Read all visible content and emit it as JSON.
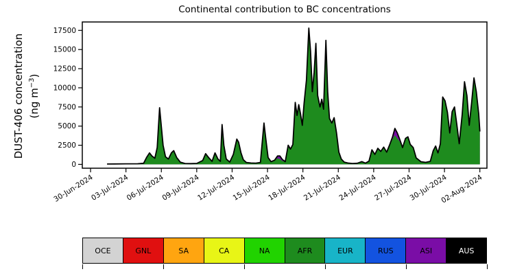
{
  "chart_data": {
    "type": "area",
    "stacked": true,
    "title": "Continental contribution to BC concentrations",
    "ylabel": "DUST-406 concentration (ng m^-3)",
    "ylabel_parts": {
      "line1": "DUST-406 concentration",
      "unit_prefix": "(ng m",
      "unit_exponent": "−3",
      "unit_suffix": ")"
    },
    "xlabel": "",
    "grid": false,
    "legend_position": "bottom",
    "outline_color": "#000000",
    "xlim": [
      -0.7,
      33.6
    ],
    "ylim": [
      -500,
      18600
    ],
    "yticks": [
      0,
      2500,
      5000,
      7500,
      10000,
      12500,
      15000,
      17500
    ],
    "xtick_days": [
      0,
      3,
      6,
      9,
      12,
      15,
      18,
      21,
      24,
      27,
      30,
      33
    ],
    "xtick_labels": [
      "30-Jun-2024",
      "03-Jul-2024",
      "06-Jul-2024",
      "09-Jul-2024",
      "12-Jul-2024",
      "15-Jul-2024",
      "18-Jul-2024",
      "21-Jul-2024",
      "24-Jul-2024",
      "27-Jul-2024",
      "30-Jul-2024",
      "02-Aug-2024"
    ],
    "x_day_zero": "30-Jun-2024",
    "x": [
      1.4,
      2.0,
      3.0,
      4.0,
      4.5,
      4.75,
      5.0,
      5.2,
      5.45,
      5.65,
      5.85,
      6.0,
      6.15,
      6.35,
      6.6,
      6.85,
      7.05,
      7.3,
      7.6,
      8.0,
      8.5,
      9.0,
      9.5,
      9.75,
      10.0,
      10.3,
      10.55,
      10.8,
      11.0,
      11.15,
      11.3,
      11.5,
      11.8,
      12.1,
      12.4,
      12.55,
      12.75,
      12.95,
      13.2,
      13.6,
      14.0,
      14.4,
      14.7,
      14.85,
      15.05,
      15.3,
      15.6,
      15.85,
      16.05,
      16.25,
      16.5,
      16.75,
      16.95,
      17.15,
      17.35,
      17.5,
      17.65,
      17.8,
      17.95,
      18.1,
      18.3,
      18.5,
      18.65,
      18.8,
      18.95,
      19.1,
      19.25,
      19.45,
      19.6,
      19.75,
      19.95,
      20.1,
      20.25,
      20.45,
      20.65,
      20.85,
      21.05,
      21.25,
      21.5,
      21.8,
      22.2,
      22.6,
      23.0,
      23.3,
      23.6,
      23.85,
      24.1,
      24.35,
      24.6,
      24.85,
      25.1,
      25.35,
      25.6,
      25.8,
      26.0,
      26.2,
      26.45,
      26.7,
      26.9,
      27.1,
      27.35,
      27.6,
      28.0,
      28.4,
      28.8,
      29.05,
      29.25,
      29.45,
      29.65,
      29.85,
      30.05,
      30.25,
      30.45,
      30.65,
      30.85,
      31.05,
      31.25,
      31.5,
      31.7,
      31.9,
      32.1,
      32.3,
      32.5,
      32.7,
      32.9,
      33.0
    ],
    "series": [
      {
        "name": "AFR",
        "color": "#1e8b1e",
        "values": [
          50,
          60,
          70,
          80,
          150,
          900,
          1500,
          1100,
          800,
          2200,
          7400,
          5000,
          2500,
          1000,
          700,
          1500,
          1800,
          900,
          300,
          120,
          100,
          130,
          500,
          1400,
          900,
          400,
          1500,
          700,
          400,
          5200,
          2500,
          700,
          300,
          1300,
          3300,
          2900,
          1500,
          600,
          250,
          180,
          160,
          250,
          5400,
          3400,
          900,
          350,
          550,
          800,
          700,
          450,
          350,
          2500,
          2000,
          2600,
          8100,
          6400,
          7800,
          6600,
          5100,
          8000,
          11000,
          17800,
          14800,
          9500,
          12000,
          15800,
          9000,
          7500,
          8500,
          7200,
          16200,
          9500,
          6000,
          5400,
          6100,
          4100,
          1600,
          700,
          300,
          180,
          120,
          150,
          260,
          160,
          420,
          1900,
          1300,
          2100,
          1700,
          2250,
          1600,
          2450,
          3300,
          3800,
          3400,
          3000,
          2200,
          3400,
          3600,
          2600,
          2200,
          850,
          350,
          260,
          400,
          1800,
          2400,
          1500,
          2700,
          8800,
          8300,
          6800,
          4100,
          6900,
          7500,
          5200,
          2700,
          6500,
          10800,
          9000,
          5100,
          8000,
          11300,
          9500,
          6600,
          4300
        ]
      },
      {
        "name": "ASI",
        "color": "#7a0da6",
        "values": [
          0,
          0,
          0,
          0,
          0,
          0,
          0,
          0,
          0,
          0,
          0,
          0,
          0,
          0,
          0,
          0,
          0,
          0,
          0,
          0,
          0,
          0,
          0,
          0,
          0,
          0,
          0,
          0,
          0,
          0,
          0,
          0,
          0,
          0,
          0,
          0,
          0,
          0,
          0,
          0,
          0,
          0,
          0,
          0,
          0,
          0,
          0,
          300,
          400,
          200,
          0,
          0,
          0,
          0,
          0,
          0,
          0,
          0,
          0,
          0,
          0,
          0,
          0,
          0,
          0,
          0,
          0,
          0,
          0,
          0,
          0,
          0,
          0,
          0,
          0,
          0,
          0,
          0,
          0,
          0,
          0,
          0,
          100,
          0,
          0,
          0,
          0,
          0,
          0,
          0,
          0,
          100,
          300,
          900,
          700,
          300,
          0,
          0,
          0,
          0,
          0,
          0,
          0,
          0,
          0,
          0,
          0,
          0,
          0,
          0,
          0,
          0,
          0,
          0,
          0,
          0,
          0,
          0,
          0,
          0,
          0,
          0,
          0,
          0,
          0,
          0
        ]
      }
    ]
  },
  "legend": {
    "items": [
      {
        "label": "OCE",
        "color": "#d3d3d3",
        "text_color": "#000000"
      },
      {
        "label": "GNL",
        "color": "#e01010",
        "text_color": "#000000"
      },
      {
        "label": "SA",
        "color": "#ffa510",
        "text_color": "#000000"
      },
      {
        "label": "CA",
        "color": "#e8f516",
        "text_color": "#000000"
      },
      {
        "label": "NA",
        "color": "#21d300",
        "text_color": "#000000"
      },
      {
        "label": "AFR",
        "color": "#1e8b1e",
        "text_color": "#000000"
      },
      {
        "label": "EUR",
        "color": "#18b4c8",
        "text_color": "#000000"
      },
      {
        "label": "RUS",
        "color": "#1353e0",
        "text_color": "#000000"
      },
      {
        "label": "ASI",
        "color": "#7a0da6",
        "text_color": "#000000"
      },
      {
        "label": "AUS",
        "color": "#000000",
        "text_color": "#ffffff"
      }
    ]
  }
}
